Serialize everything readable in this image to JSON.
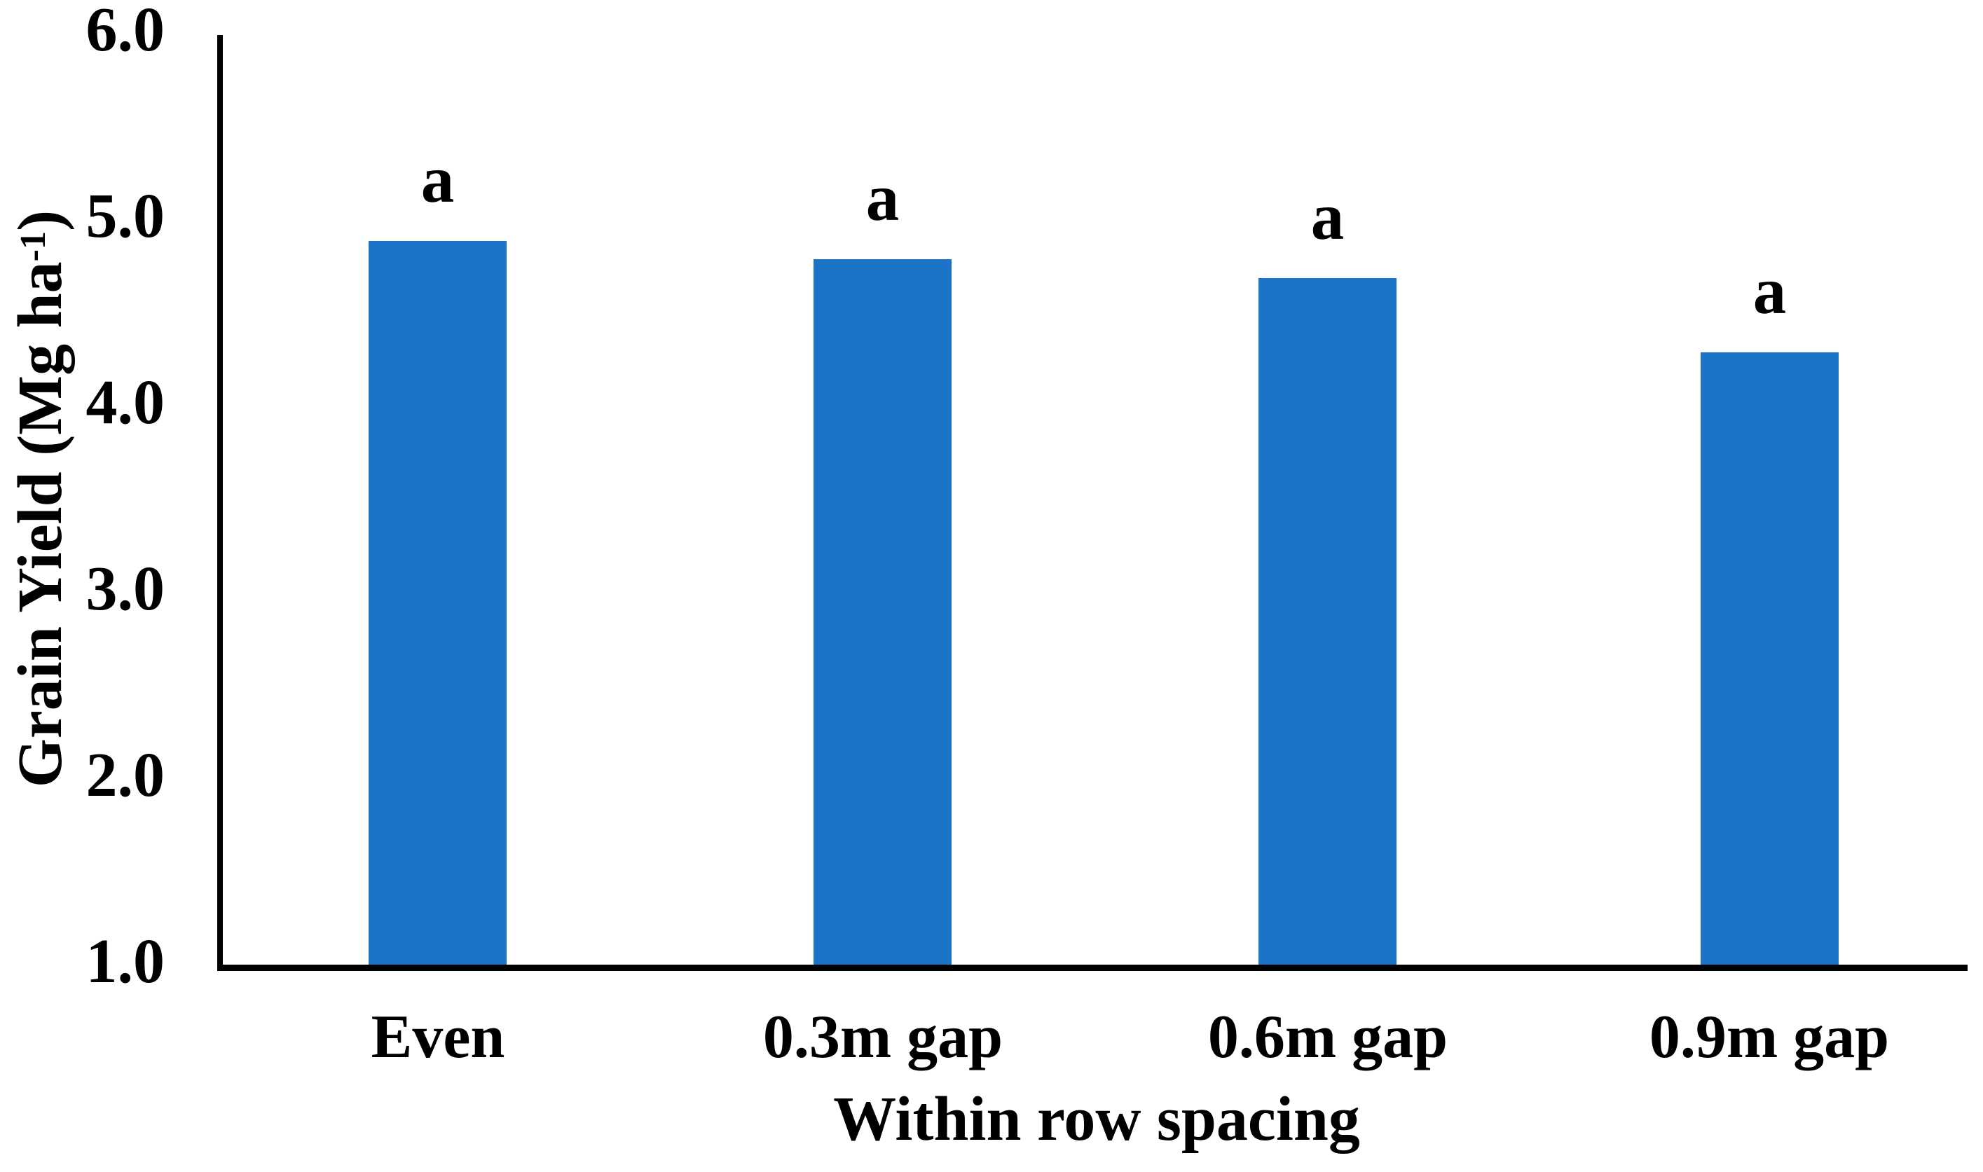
{
  "chart_data": {
    "type": "bar",
    "title": "",
    "xlabel": "Within row spacing",
    "ylabel": "Grain Yield (Mg ha⁻¹)",
    "ylabel_parts": {
      "main": "Grain Yield (Mg ha",
      "superscript": "-1",
      "suffix": ")"
    },
    "categories": [
      "Even",
      "0.3m gap",
      "0.6m gap",
      "0.9m gap"
    ],
    "values": [
      4.9,
      4.8,
      4.7,
      4.3
    ],
    "bar_labels": [
      "a",
      "a",
      "a",
      "a"
    ],
    "yticks": [
      "6.0",
      "5.0",
      "4.0",
      "3.0",
      "2.0",
      "1.0"
    ],
    "ylim": [
      1.0,
      6.0
    ],
    "grid": false,
    "legend_position": "none",
    "bar_color": "#1C74C9",
    "axis_color": "#000000"
  }
}
